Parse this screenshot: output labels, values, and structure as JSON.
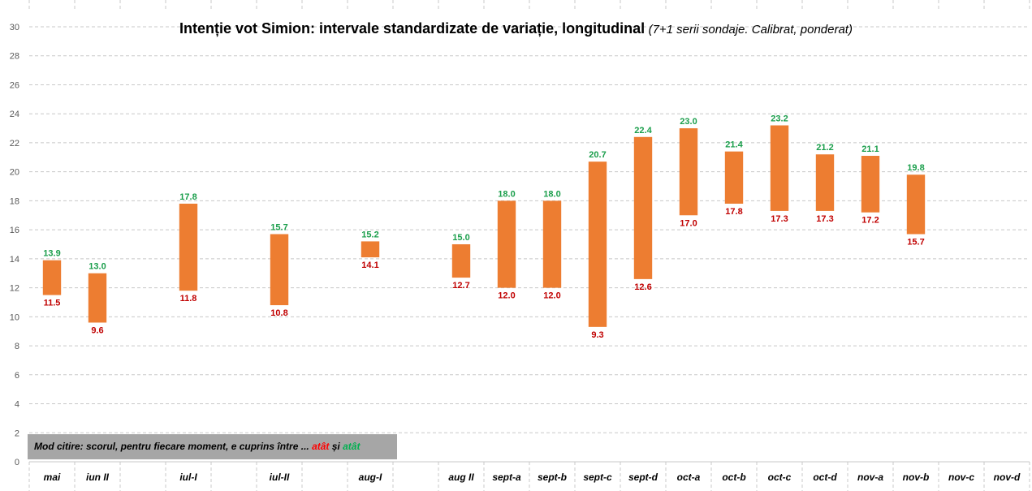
{
  "title": "Intenție vot Simion: intervale standardizate de variație, longitudinal",
  "subtitle": "(7+1 serii sondaje. Calibrat, ponderat)",
  "note": {
    "text": "Mod citire: scorul, pentru fiecare moment, e cuprins între ... ",
    "word_red": "atât",
    "and": " și ",
    "word_green": "atât"
  },
  "colors": {
    "bar": "#ED7D31",
    "high_label": "#1a9e4b",
    "low_label": "#c00000",
    "grid": "#c8c8c8"
  },
  "chart_data": {
    "type": "bar",
    "grid": true,
    "ylim": [
      0,
      30
    ],
    "yticks": [
      0,
      2,
      4,
      6,
      8,
      10,
      12,
      14,
      16,
      18,
      20,
      22,
      24,
      26,
      28,
      30
    ],
    "categories": [
      "mai",
      "iun II",
      "",
      "iul-I",
      "",
      "iul-II",
      "",
      "aug-I",
      "",
      "aug II",
      "sept-a",
      "sept-b",
      "sept-c",
      "sept-d",
      "oct-a",
      "oct-b",
      "oct-c",
      "oct-d",
      "nov-a",
      "nov-b",
      "nov-c",
      "nov-d"
    ],
    "series": [
      {
        "values": [
          11.5,
          9.6,
          null,
          11.8,
          null,
          10.8,
          null,
          14.1,
          null,
          12.7,
          12.0,
          12.0,
          9.3,
          12.6,
          17.0,
          17.8,
          17.3,
          17.3,
          17.2,
          15.7,
          null,
          null
        ]
      },
      {
        "values": [
          13.9,
          13.0,
          null,
          17.8,
          null,
          15.7,
          null,
          15.2,
          null,
          15.0,
          18.0,
          18.0,
          20.7,
          22.4,
          23.0,
          21.4,
          23.2,
          21.2,
          21.1,
          19.8,
          null,
          null
        ]
      }
    ]
  }
}
